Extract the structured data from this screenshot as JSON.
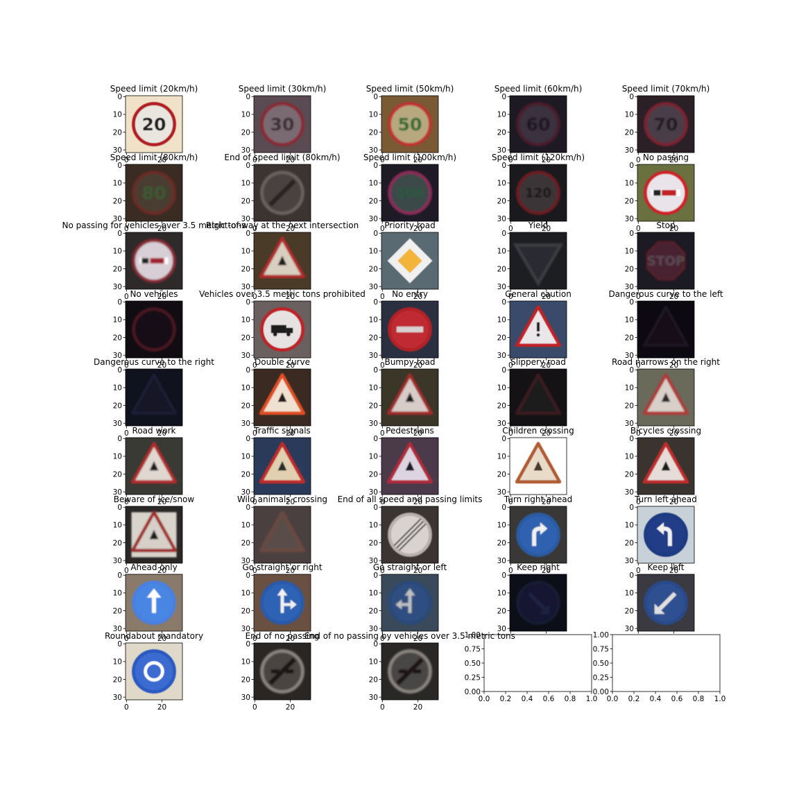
{
  "figure": {
    "type": "image-grid",
    "rows": 9,
    "cols": 5
  },
  "chart_data": {
    "type": "image-grid",
    "panels": [
      {
        "title": "Speed limit (20km/h)",
        "image": {
          "bg": "#efe2c8",
          "shape": "circle",
          "ring": "#b01c24",
          "fill": "#e9e6df",
          "symbol": "20",
          "symbol_color": "#222222"
        }
      },
      {
        "title": "Speed limit (30km/h)",
        "image": {
          "bg": "#5a4a52",
          "shape": "circle",
          "ring": "#8a2a34",
          "fill": "#7a6a72",
          "symbol": "30",
          "symbol_color": "#3a2e34",
          "blur": 1
        }
      },
      {
        "title": "Speed limit (50km/h)",
        "image": {
          "bg": "#7a5a34",
          "shape": "circle",
          "ring": "#c03030",
          "fill": "#b8a880",
          "symbol": "50",
          "symbol_color": "#2a6a30",
          "blur": 1
        }
      },
      {
        "title": "Speed limit (60km/h)",
        "image": {
          "bg": "#1e1a24",
          "shape": "circle",
          "ring": "#4a1e2a",
          "fill": "#3a3040",
          "symbol": "60",
          "symbol_color": "#1a1620",
          "blur": 1.2
        }
      },
      {
        "title": "Speed limit (70km/h)",
        "image": {
          "bg": "#2a2026",
          "shape": "circle",
          "ring": "#7a2230",
          "fill": "#4a3e46",
          "symbol": "70",
          "symbol_color": "#201a20",
          "blur": 1
        }
      },
      {
        "title": "Speed limit (80km/h)",
        "image": {
          "bg": "#3a2c22",
          "shape": "circle",
          "ring": "#6a2a26",
          "fill": "#4a3e30",
          "symbol": "80",
          "symbol_color": "#3a5a30",
          "blur": 1.4
        }
      },
      {
        "title": "End of speed limit (80km/h)",
        "image": {
          "bg": "#3c3430",
          "shape": "circle",
          "ring": "#6a6260",
          "fill": "#4a4240",
          "symbol": "slash",
          "symbol_color": "#2a2420",
          "blur": 1.4
        }
      },
      {
        "title": "Speed limit (100km/h)",
        "image": {
          "bg": "#1e1a26",
          "shape": "circle",
          "ring": "#8a2a56",
          "fill": "#3a4a4a",
          "symbol": "100",
          "symbol_color": "#2a5a40",
          "blur": 1
        }
      },
      {
        "title": "Speed limit (120km/h)",
        "image": {
          "bg": "#1a1a1e",
          "shape": "circle",
          "ring": "#6a1e22",
          "fill": "#3a3438",
          "symbol": "120",
          "symbol_color": "#1a1618",
          "blur": 1
        }
      },
      {
        "title": "No passing",
        "image": {
          "bg": "#6a7040",
          "shape": "circle",
          "ring": "#d02028",
          "fill": "#e8e4ea",
          "symbol": "nopass",
          "symbol_color": "#c02028",
          "blur": 0.8
        }
      },
      {
        "title": "No passing for vehicles over 3.5 metric tons",
        "image": {
          "bg": "#2e2a2a",
          "shape": "circle",
          "ring": "#8a2a34",
          "fill": "#d8cfd6",
          "symbol": "nopass",
          "symbol_color": "#a02030",
          "blur": 1.2
        }
      },
      {
        "title": "Right-of-way at the next intersection",
        "image": {
          "bg": "#4a3a28",
          "shape": "triangle",
          "ring": "#b02a2a",
          "fill": "#d8cfc0",
          "symbol": "dot",
          "symbol_color": "#1a1a1a",
          "blur": 1
        }
      },
      {
        "title": "Priority road",
        "image": {
          "bg": "#5a6a72",
          "shape": "diamond",
          "ring": "#f0f0f0",
          "fill": "#f2b43a",
          "symbol": "",
          "symbol_color": "#000000",
          "blur": 0.6
        }
      },
      {
        "title": "Yield",
        "image": {
          "bg": "#1c1e22",
          "shape": "invtriangle",
          "ring": "#3a3a40",
          "fill": "#2a2c30",
          "symbol": "",
          "symbol_color": "#000000",
          "blur": 1
        }
      },
      {
        "title": "Stop",
        "image": {
          "bg": "#1c1a22",
          "shape": "octagon",
          "ring": "#5a1a26",
          "fill": "#4a2030",
          "symbol": "STOP",
          "symbol_color": "#5a4a52",
          "blur": 1.2
        }
      },
      {
        "title": "No vehicles",
        "image": {
          "bg": "#100c12",
          "shape": "circle",
          "ring": "#4a1820",
          "fill": "#141016",
          "symbol": "",
          "symbol_color": "#000000",
          "blur": 1.2
        }
      },
      {
        "title": "Vehicles over 3.5 metric tons prohibited",
        "image": {
          "bg": "#6a6060",
          "shape": "circle",
          "ring": "#c02026",
          "fill": "#e6e2e2",
          "symbol": "truck",
          "symbol_color": "#1a1a1a",
          "blur": 0.6
        }
      },
      {
        "title": "No entry",
        "image": {
          "bg": "#2a3040",
          "shape": "circle",
          "ring": "#b02028",
          "fill": "#c02a30",
          "symbol": "bar",
          "symbol_color": "#d8d0d0",
          "blur": 0.8
        }
      },
      {
        "title": "General caution",
        "image": {
          "bg": "#3a4a6a",
          "shape": "triangle",
          "ring": "#c02026",
          "fill": "#eae6ea",
          "symbol": "!",
          "symbol_color": "#1a1a1a",
          "blur": 0.6
        }
      },
      {
        "title": "Dangerous curve to the left",
        "image": {
          "bg": "#0c0a10",
          "shape": "triangle",
          "ring": "#1e1420",
          "fill": "#120e16",
          "symbol": "",
          "symbol_color": "#000000",
          "blur": 1.4
        }
      },
      {
        "title": "Dangerous curve to the right",
        "image": {
          "bg": "#10121e",
          "shape": "triangle",
          "ring": "#1e1e34",
          "fill": "#161826",
          "symbol": "",
          "symbol_color": "#000000",
          "blur": 1.4
        }
      },
      {
        "title": "Double curve",
        "image": {
          "bg": "#3a2a22",
          "shape": "triangle",
          "ring": "#e05020",
          "fill": "#f0e0d0",
          "symbol": "curve",
          "symbol_color": "#2a1a1a",
          "blur": 0.8
        }
      },
      {
        "title": "Bumpy road",
        "image": {
          "bg": "#3a3628",
          "shape": "triangle",
          "ring": "#a02a2a",
          "fill": "#d8ccc8",
          "symbol": "bump",
          "symbol_color": "#1a1a1a",
          "blur": 1
        }
      },
      {
        "title": "Slippery road",
        "image": {
          "bg": "#141214",
          "shape": "triangle",
          "ring": "#3a1a20",
          "fill": "#1e1a1e",
          "symbol": "",
          "symbol_color": "#000000",
          "blur": 1.4
        }
      },
      {
        "title": "Road narrows on the right",
        "image": {
          "bg": "#6a6a5a",
          "shape": "triangle",
          "ring": "#b03a3a",
          "fill": "#d8d0c8",
          "symbol": "narrow",
          "symbol_color": "#2a2a2a",
          "blur": 1
        }
      },
      {
        "title": "Road work",
        "image": {
          "bg": "#3a3a34",
          "shape": "triangle",
          "ring": "#b02a2a",
          "fill": "#e0d8d0",
          "symbol": "worker",
          "symbol_color": "#1a1a1a",
          "blur": 1
        }
      },
      {
        "title": "Traffic signals",
        "image": {
          "bg": "#2a3a5a",
          "shape": "triangle",
          "ring": "#c02a2a",
          "fill": "#e0d0b0",
          "symbol": "signal",
          "symbol_color": "#2a2a2a",
          "blur": 0.8
        }
      },
      {
        "title": "Pedestrians",
        "image": {
          "bg": "#4a3a4a",
          "shape": "triangle",
          "ring": "#b02a3a",
          "fill": "#dcd4e0",
          "symbol": "walker",
          "symbol_color": "#1a1a2a",
          "blur": 0.8
        }
      },
      {
        "title": "Children crossing",
        "image": {
          "bg": "#ffffff",
          "shape": "triangle",
          "ring": "#b05a30",
          "fill": "#e8dcc8",
          "symbol": "children",
          "symbol_color": "#4a3a2a",
          "blur": 0.6
        }
      },
      {
        "title": "Bicycles crossing",
        "image": {
          "bg": "#3a3430",
          "shape": "triangle",
          "ring": "#c02a2a",
          "fill": "#e6ddd8",
          "symbol": "bike",
          "symbol_color": "#1a1a1a",
          "blur": 0.8
        }
      },
      {
        "title": "Beware of ice/snow",
        "image": {
          "bg": "#2a2826",
          "shape": "square-triangle",
          "ring": "#a02a2a",
          "fill": "#d6d0c8",
          "symbol": "snow",
          "symbol_color": "#1a1a1a",
          "blur": 1
        }
      },
      {
        "title": "Wild animals crossing",
        "image": {
          "bg": "#4a4040",
          "shape": "triangle",
          "ring": "#6a4a40",
          "fill": "#5a4e48",
          "symbol": "",
          "symbol_color": "#000000",
          "blur": 1.4
        }
      },
      {
        "title": "End of all speed and passing limits",
        "image": {
          "bg": "#3a3432",
          "shape": "circle",
          "ring": "#b8b0ac",
          "fill": "#d8d2d0",
          "symbol": "endall",
          "symbol_color": "#2a2826",
          "blur": 0.8
        }
      },
      {
        "title": "Turn right ahead",
        "image": {
          "bg": "#3a3836",
          "shape": "circle",
          "ring": "#2a5aa0",
          "fill": "#2e62b0",
          "symbol": "turnright",
          "symbol_color": "#f0f0f0",
          "blur": 0.8
        }
      },
      {
        "title": "Turn left ahead",
        "image": {
          "bg": "#c8d0d8",
          "shape": "circle",
          "ring": "#1e3a80",
          "fill": "#203e88",
          "symbol": "turnleft",
          "symbol_color": "#f0f0f0",
          "blur": 0.6
        }
      },
      {
        "title": "Ahead only",
        "image": {
          "bg": "#8a7a6a",
          "shape": "circle",
          "ring": "#4a80e0",
          "fill": "#4a86e4",
          "symbol": "up",
          "symbol_color": "#ffffff",
          "blur": 0.8
        }
      },
      {
        "title": "Go straight or right",
        "image": {
          "bg": "#6a5040",
          "shape": "circle",
          "ring": "#2a5aa8",
          "fill": "#2e62b4",
          "symbol": "upright",
          "symbol_color": "#f0f0f0",
          "blur": 0.8
        }
      },
      {
        "title": "Go straight or left",
        "image": {
          "bg": "#3a4a5a",
          "shape": "circle",
          "ring": "#2a4a78",
          "fill": "#2e4e80",
          "symbol": "upleft",
          "symbol_color": "#c0c0c0",
          "blur": 1
        }
      },
      {
        "title": "Keep right",
        "image": {
          "bg": "#0c0e18",
          "shape": "circle",
          "ring": "#141a30",
          "fill": "#121830",
          "symbol": "keepright",
          "symbol_color": "#1e2440",
          "blur": 1.4
        }
      },
      {
        "title": "Keep left",
        "image": {
          "bg": "#3a3a40",
          "shape": "circle",
          "ring": "#2a4a8a",
          "fill": "#2e5090",
          "symbol": "keepleft",
          "symbol_color": "#e0e0e0",
          "blur": 0.8
        }
      },
      {
        "title": "Roundabout mandatory",
        "image": {
          "bg": "#e0d8c8",
          "shape": "circle",
          "ring": "#2a5ac0",
          "fill": "#3a6ad0",
          "symbol": "roundabout",
          "symbol_color": "#ffffff",
          "blur": 0.6
        }
      },
      {
        "title": "End of no passing",
        "image": {
          "bg": "#2a2624",
          "shape": "circle",
          "ring": "#8a8480",
          "fill": "#4a4442",
          "symbol": "endpass",
          "symbol_color": "#1a1818",
          "blur": 1.2
        }
      },
      {
        "title": "End of no passing by vehicles over 3.5 metric tons",
        "image": {
          "bg": "#2a2826",
          "shape": "circle",
          "ring": "#8a8480",
          "fill": "#4a4644",
          "symbol": "endpass",
          "symbol_color": "#1a1818",
          "blur": 1.2
        }
      },
      {
        "title": "",
        "empty": true
      },
      {
        "title": "",
        "empty": true
      }
    ],
    "image_axis": {
      "xticks": [
        "0",
        "20"
      ],
      "yticks": [
        "0",
        "10",
        "20",
        "30"
      ],
      "xlim": [
        0,
        32
      ],
      "ylim": [
        32,
        0
      ]
    },
    "empty_axis": {
      "xticks": [
        "0.0",
        "0.2",
        "0.4",
        "0.6",
        "0.8",
        "1.0"
      ],
      "yticks": [
        "0.00",
        "0.25",
        "0.50",
        "0.75",
        "1.00"
      ],
      "xlim": [
        0,
        1
      ],
      "ylim": [
        0,
        1
      ]
    }
  }
}
